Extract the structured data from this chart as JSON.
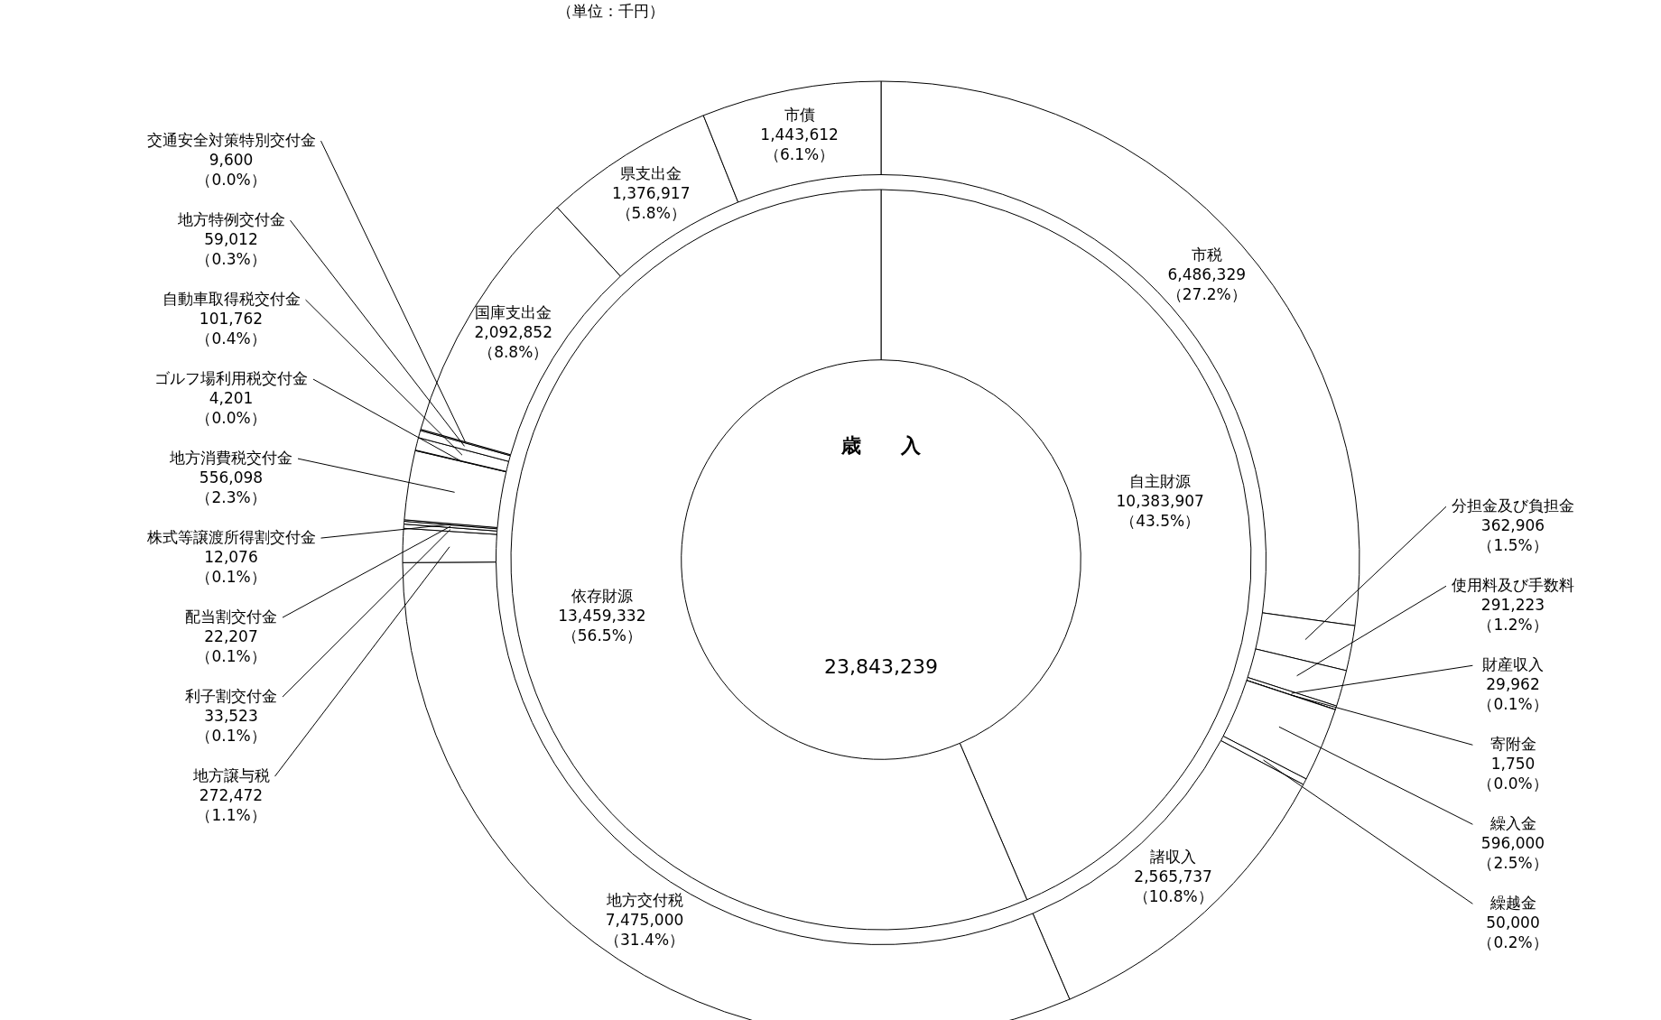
{
  "chart_data": [
    {
      "type": "donut",
      "annotations": [
        "（単位：千円）"
      ],
      "categories": [
        "市税",
        "分担金及び負担金",
        "使用料及び手数料",
        "財産収入",
        "寄附金",
        "繰入金",
        "繰越金",
        "諸収入",
        "地方交付税",
        "地方譲与税",
        "利子割交付金",
        "配当割交付金",
        "株式等譲渡所得割交付金",
        "地方消費税交付金",
        "ゴルフ場利用税交付金",
        "自動車取得税交付金",
        "地方特例交付金",
        "交通安全対策特別交付金",
        "国庫支出金",
        "県支出金",
        "市債"
      ],
      "values": [
        6486329,
        362906,
        291223,
        29962,
        1750,
        596000,
        50000,
        2565737,
        7475000,
        272472,
        33523,
        22207,
        12076,
        556098,
        4201,
        101762,
        59012,
        9600,
        2092852,
        1376917,
        1443612
      ],
      "colors": [
        "#ffffff",
        "#ffffff",
        "#ffffff",
        "#ffffff",
        "#ffffff",
        "#ffffff",
        "#ffffff",
        "#ffffff",
        "#ffffff",
        "#ffffff",
        "#ffffff",
        "#ffffff",
        "#ffffff",
        "#ffffff",
        "#ffffff",
        "#ffffff",
        "#ffffff",
        "#ffffff",
        "#ffffff",
        "#ffffff",
        "#ffffff"
      ],
      "value_labels": [
        "6,486,329\n（27.2%）",
        "362,906\n（1.5%）",
        "291,223\n（1.2%）",
        "29,962\n（0.1%）",
        "1,750\n（0.0%）",
        "596,000\n（2.5%）",
        "50,000\n（0.2%）",
        "2,565,737\n（10.8%）",
        "7,475,000\n（31.4%）",
        "272,472\n（1.1%）",
        "33,523\n（0.1%）",
        "22,207\n（0.1%）",
        "12,076\n（0.1%）",
        "556,098\n（2.3%）",
        "4,201\n（0.0%）",
        "101,762\n（0.4%）",
        "59,012\n（0.3%）",
        "9,600\n（0.0%）",
        "2,092,852\n（8.8%）",
        "1,376,917\n（5.8%）",
        "1,443,612\n（6.1%）"
      ]
    },
    {
      "type": "donut",
      "title": "歳　　入",
      "annotations": [
        "23,843,239"
      ],
      "categories": [
        "自主財源",
        "依存財源"
      ],
      "values": [
        10383907,
        13459332
      ],
      "colors": [
        "#ffffff",
        "#ffffff"
      ],
      "value_labels": [
        "10,383,907\n（43.5%）",
        "13,459,332\n（56.5%）"
      ]
    }
  ]
}
